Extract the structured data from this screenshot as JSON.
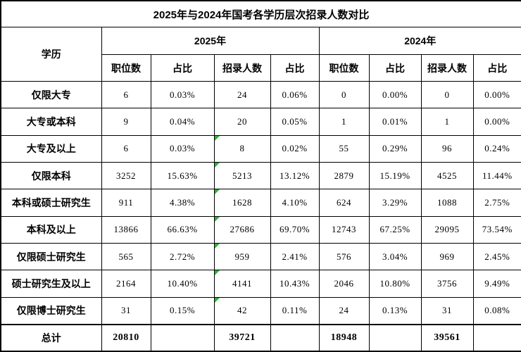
{
  "page_title": "2025年与2024年国考各学历层次招录人数对比",
  "chart_data": {
    "type": "table",
    "title": "2025年与2024年国考各学历层次招录人数对比",
    "row_header": "学历",
    "column_groups": [
      {
        "label": "2025年",
        "span": 4
      },
      {
        "label": "2024年",
        "span": 4
      }
    ],
    "sub_columns": [
      "职位数",
      "占比",
      "招录人数",
      "占比",
      "职位数",
      "占比",
      "招录人数",
      "占比"
    ],
    "rows": [
      {
        "label": "仅限大专",
        "values": [
          "6",
          "0.03%",
          "24",
          "0.06%",
          "0",
          "0.00%",
          "0",
          "0.00%"
        ],
        "flag_cells": []
      },
      {
        "label": "大专或本科",
        "values": [
          "9",
          "0.04%",
          "20",
          "0.05%",
          "1",
          "0.01%",
          "1",
          "0.00%"
        ],
        "flag_cells": []
      },
      {
        "label": "大专及以上",
        "values": [
          "6",
          "0.03%",
          "8",
          "0.02%",
          "55",
          "0.29%",
          "96",
          "0.24%"
        ],
        "flag_cells": [
          2
        ]
      },
      {
        "label": "仅限本科",
        "values": [
          "3252",
          "15.63%",
          "5213",
          "13.12%",
          "2879",
          "15.19%",
          "4525",
          "11.44%"
        ],
        "flag_cells": [
          2
        ]
      },
      {
        "label": "本科或硕士研究生",
        "values": [
          "911",
          "4.38%",
          "1628",
          "4.10%",
          "624",
          "3.29%",
          "1088",
          "2.75%"
        ],
        "flag_cells": [
          2
        ]
      },
      {
        "label": "本科及以上",
        "values": [
          "13866",
          "66.63%",
          "27686",
          "69.70%",
          "12743",
          "67.25%",
          "29095",
          "73.54%"
        ],
        "flag_cells": [
          2
        ]
      },
      {
        "label": "仅限硕士研究生",
        "values": [
          "565",
          "2.72%",
          "959",
          "2.41%",
          "576",
          "3.04%",
          "969",
          "2.45%"
        ],
        "flag_cells": [
          2
        ]
      },
      {
        "label": "硕士研究生及以上",
        "values": [
          "2164",
          "10.40%",
          "4141",
          "10.43%",
          "2046",
          "10.80%",
          "3756",
          "9.49%"
        ],
        "flag_cells": [
          2
        ]
      },
      {
        "label": "仅限博士研究生",
        "values": [
          "31",
          "0.15%",
          "42",
          "0.11%",
          "24",
          "0.13%",
          "31",
          "0.08%"
        ],
        "flag_cells": [
          2
        ]
      }
    ],
    "total_row": {
      "label": "总计",
      "values": [
        "20810",
        "",
        "39721",
        "",
        "18948",
        "",
        "39561",
        ""
      ],
      "flag_cells": []
    }
  },
  "icons": {
    "cell_flag": "green corner triangle (number-stored-as-text marker)"
  },
  "colors": {
    "border": "#000000",
    "background": "#ffffff",
    "text": "#000000",
    "flag_green": "#2eb135"
  }
}
